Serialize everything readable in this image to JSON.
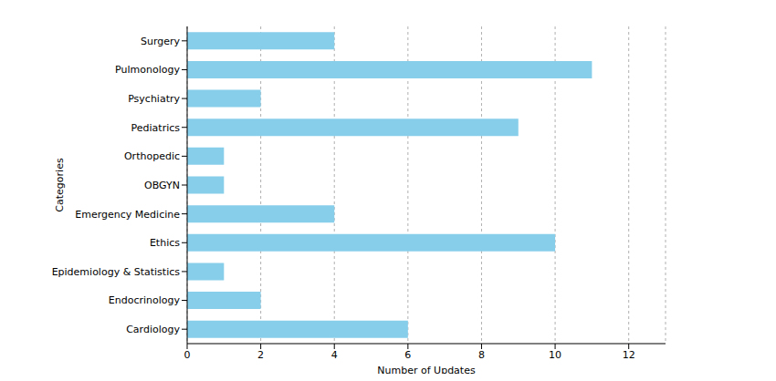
{
  "chart_data": {
    "type": "bar",
    "orientation": "horizontal",
    "categories": [
      "Surgery",
      "Pulmonology",
      "Psychiatry",
      "Pediatrics",
      "Orthopedic",
      "OBGYN",
      "Emergency Medicine",
      "Ethics",
      "Epidemiology & Statistics",
      "Endocrinology",
      "Cardiology"
    ],
    "values": [
      4,
      11,
      2,
      9,
      1,
      1,
      4,
      10,
      1,
      2,
      6
    ],
    "color": "#87ceeb",
    "xlim": [
      0,
      13
    ],
    "xticks": [
      0,
      2,
      4,
      6,
      8,
      10,
      12
    ],
    "x_label": "Number of Updates",
    "y_label": "Categories",
    "grid": true
  }
}
